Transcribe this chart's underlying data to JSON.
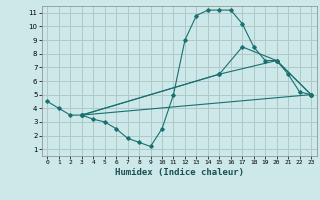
{
  "xlabel": "Humidex (Indice chaleur)",
  "bg_color": "#cce8e8",
  "grid_color": "#b0c8c8",
  "line_color": "#1a7070",
  "xlim": [
    -0.5,
    23.5
  ],
  "ylim": [
    0.5,
    11.5
  ],
  "xticks": [
    0,
    1,
    2,
    3,
    4,
    5,
    6,
    7,
    8,
    9,
    10,
    11,
    12,
    13,
    14,
    15,
    16,
    17,
    18,
    19,
    20,
    21,
    22,
    23
  ],
  "yticks": [
    1,
    2,
    3,
    4,
    5,
    6,
    7,
    8,
    9,
    10,
    11
  ],
  "lines": [
    {
      "x": [
        0,
        1,
        2,
        3,
        4,
        5,
        6,
        7,
        8,
        9,
        10,
        11,
        12,
        13,
        14,
        15,
        16,
        17,
        18,
        19,
        20,
        21,
        22,
        23
      ],
      "y": [
        4.5,
        4.0,
        3.5,
        3.5,
        3.2,
        3.0,
        2.5,
        1.8,
        1.5,
        1.2,
        2.5,
        5.0,
        9.0,
        10.8,
        11.2,
        11.2,
        11.2,
        10.2,
        8.5,
        7.5,
        7.5,
        6.5,
        5.2,
        5.0
      ]
    },
    {
      "x": [
        3,
        23
      ],
      "y": [
        3.5,
        5.0
      ]
    },
    {
      "x": [
        3,
        15,
        20,
        23
      ],
      "y": [
        3.5,
        6.5,
        7.5,
        5.0
      ]
    },
    {
      "x": [
        3,
        15,
        17,
        20,
        23
      ],
      "y": [
        3.5,
        6.5,
        8.5,
        7.5,
        5.0
      ]
    }
  ]
}
